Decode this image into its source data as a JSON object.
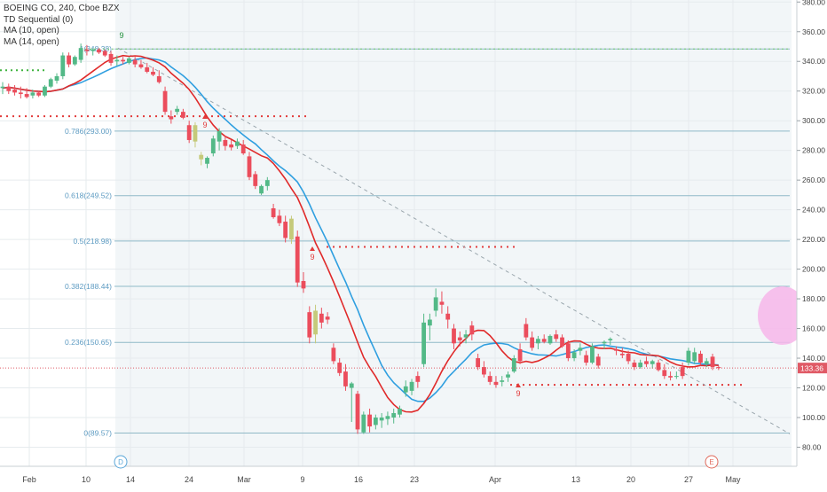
{
  "legend": {
    "symbol_line": "BOEING CO, 240, Cboe BZX",
    "indicator_1": "TD Sequential (0)",
    "indicator_2": "MA (10, open)",
    "indicator_3": "MA (14, open)"
  },
  "chart_data": {
    "type": "candlestick",
    "title": "BOEING CO, 240, Cboe BZX",
    "ylim": [
      75,
      385
    ],
    "y_ticks": [
      80,
      100,
      120,
      140,
      160,
      180,
      200,
      220,
      240,
      260,
      280,
      300,
      320,
      340,
      360,
      380
    ],
    "x_ticks": [
      "Feb",
      "10",
      "14",
      "24",
      "Mar",
      "9",
      "16",
      "23",
      "Apr",
      "13",
      "20",
      "27",
      "May"
    ],
    "last_price": "133.36",
    "fibonacci": {
      "levels": [
        {
          "ratio": "1",
          "price": "(348.38)",
          "value": 348.38
        },
        {
          "ratio": "0.786",
          "price": "(293.00)",
          "value": 293.0
        },
        {
          "ratio": "0.618",
          "price": "(249.52)",
          "value": 249.52
        },
        {
          "ratio": "0.5",
          "price": "(218.98)",
          "value": 218.98
        },
        {
          "ratio": "0.382",
          "price": "(188.44)",
          "value": 188.44
        },
        {
          "ratio": "0.236",
          "price": "(150.65)",
          "value": 150.65
        },
        {
          "ratio": "0",
          "price": "(89.57)",
          "value": 89.57
        }
      ]
    },
    "td_labels": [
      "9",
      "9",
      "9",
      "9"
    ],
    "event_markers": [
      "D",
      "E"
    ],
    "candles": [
      {
        "o": 322,
        "h": 326,
        "l": 318,
        "c": 323
      },
      {
        "o": 323,
        "h": 325,
        "l": 318,
        "c": 320
      },
      {
        "o": 321,
        "h": 324,
        "l": 317,
        "c": 319
      },
      {
        "o": 319,
        "h": 323,
        "l": 315,
        "c": 318
      },
      {
        "o": 318,
        "h": 322,
        "l": 315,
        "c": 316
      },
      {
        "o": 317,
        "h": 321,
        "l": 315,
        "c": 319
      },
      {
        "o": 319,
        "h": 320,
        "l": 316,
        "c": 317
      },
      {
        "o": 317,
        "h": 324,
        "l": 316,
        "c": 323
      },
      {
        "o": 323,
        "h": 329,
        "l": 322,
        "c": 328
      },
      {
        "o": 327,
        "h": 332,
        "l": 325,
        "c": 330
      },
      {
        "o": 330,
        "h": 346,
        "l": 328,
        "c": 344
      },
      {
        "o": 344,
        "h": 346,
        "l": 336,
        "c": 338
      },
      {
        "o": 338,
        "h": 344,
        "l": 337,
        "c": 343
      },
      {
        "o": 341,
        "h": 352,
        "l": 339,
        "c": 349
      },
      {
        "o": 348,
        "h": 351,
        "l": 344,
        "c": 347
      },
      {
        "o": 347,
        "h": 349,
        "l": 344,
        "c": 348
      },
      {
        "o": 348,
        "h": 349,
        "l": 345,
        "c": 346
      },
      {
        "o": 347,
        "h": 348,
        "l": 343,
        "c": 344
      },
      {
        "o": 345,
        "h": 347,
        "l": 337,
        "c": 339
      },
      {
        "o": 340,
        "h": 344,
        "l": 337,
        "c": 341
      },
      {
        "o": 341,
        "h": 343,
        "l": 338,
        "c": 340
      },
      {
        "o": 339,
        "h": 343,
        "l": 338,
        "c": 342
      },
      {
        "o": 341,
        "h": 343,
        "l": 336,
        "c": 338
      },
      {
        "o": 338,
        "h": 341,
        "l": 335,
        "c": 336
      },
      {
        "o": 336,
        "h": 339,
        "l": 332,
        "c": 333
      },
      {
        "o": 333,
        "h": 336,
        "l": 330,
        "c": 331
      },
      {
        "o": 330,
        "h": 334,
        "l": 325,
        "c": 326
      },
      {
        "o": 320,
        "h": 323,
        "l": 304,
        "c": 306
      },
      {
        "o": 303,
        "h": 307,
        "l": 298,
        "c": 301
      },
      {
        "o": 306,
        "h": 310,
        "l": 304,
        "c": 308
      },
      {
        "o": 306,
        "h": 308,
        "l": 301,
        "c": 302
      },
      {
        "o": 297,
        "h": 300,
        "l": 285,
        "c": 287
      },
      {
        "o": 286,
        "h": 299,
        "l": 282,
        "c": 297
      },
      {
        "o": 274,
        "h": 279,
        "l": 270,
        "c": 277
      },
      {
        "o": 271,
        "h": 276,
        "l": 268,
        "c": 275
      },
      {
        "o": 278,
        "h": 290,
        "l": 276,
        "c": 288
      },
      {
        "o": 286,
        "h": 295,
        "l": 280,
        "c": 293
      },
      {
        "o": 287,
        "h": 290,
        "l": 280,
        "c": 283
      },
      {
        "o": 284,
        "h": 287,
        "l": 280,
        "c": 282
      },
      {
        "o": 283,
        "h": 288,
        "l": 281,
        "c": 286
      },
      {
        "o": 284,
        "h": 287,
        "l": 277,
        "c": 278
      },
      {
        "o": 276,
        "h": 279,
        "l": 260,
        "c": 262
      },
      {
        "o": 264,
        "h": 266,
        "l": 254,
        "c": 256
      },
      {
        "o": 251,
        "h": 257,
        "l": 250,
        "c": 256
      },
      {
        "o": 256,
        "h": 262,
        "l": 253,
        "c": 260
      },
      {
        "o": 241,
        "h": 244,
        "l": 234,
        "c": 235
      },
      {
        "o": 236,
        "h": 240,
        "l": 229,
        "c": 231
      },
      {
        "o": 232,
        "h": 236,
        "l": 218,
        "c": 221
      },
      {
        "o": 220,
        "h": 236,
        "l": 217,
        "c": 234
      },
      {
        "o": 222,
        "h": 226,
        "l": 188,
        "c": 191
      },
      {
        "o": 192,
        "h": 198,
        "l": 184,
        "c": 187
      },
      {
        "o": 171,
        "h": 175,
        "l": 150,
        "c": 154
      },
      {
        "o": 156,
        "h": 176,
        "l": 150,
        "c": 172
      },
      {
        "o": 170,
        "h": 174,
        "l": 160,
        "c": 164
      },
      {
        "o": 168,
        "h": 171,
        "l": 163,
        "c": 166
      },
      {
        "o": 147,
        "h": 150,
        "l": 136,
        "c": 138
      },
      {
        "o": 137,
        "h": 140,
        "l": 128,
        "c": 130
      },
      {
        "o": 131,
        "h": 136,
        "l": 118,
        "c": 121
      },
      {
        "o": 120,
        "h": 124,
        "l": 97,
        "c": 123
      },
      {
        "o": 116,
        "h": 118,
        "l": 89,
        "c": 92
      },
      {
        "o": 90,
        "h": 104,
        "l": 89,
        "c": 102
      },
      {
        "o": 102,
        "h": 106,
        "l": 90,
        "c": 94
      },
      {
        "o": 95,
        "h": 102,
        "l": 92,
        "c": 100
      },
      {
        "o": 98,
        "h": 103,
        "l": 93,
        "c": 100
      },
      {
        "o": 99,
        "h": 104,
        "l": 95,
        "c": 101
      },
      {
        "o": 100,
        "h": 106,
        "l": 96,
        "c": 103
      },
      {
        "o": 102,
        "h": 108,
        "l": 100,
        "c": 106
      },
      {
        "o": 117,
        "h": 125,
        "l": 114,
        "c": 121
      },
      {
        "o": 118,
        "h": 126,
        "l": 115,
        "c": 124
      },
      {
        "o": 128,
        "h": 131,
        "l": 120,
        "c": 124
      },
      {
        "o": 136,
        "h": 170,
        "l": 134,
        "c": 164
      },
      {
        "o": 162,
        "h": 170,
        "l": 152,
        "c": 166
      },
      {
        "o": 172,
        "h": 187,
        "l": 168,
        "c": 181
      },
      {
        "o": 178,
        "h": 185,
        "l": 170,
        "c": 176
      },
      {
        "o": 170,
        "h": 175,
        "l": 160,
        "c": 166
      },
      {
        "o": 160,
        "h": 163,
        "l": 146,
        "c": 150
      },
      {
        "o": 154,
        "h": 158,
        "l": 148,
        "c": 152
      },
      {
        "o": 154,
        "h": 159,
        "l": 150,
        "c": 156
      },
      {
        "o": 162,
        "h": 165,
        "l": 152,
        "c": 156
      },
      {
        "o": 140,
        "h": 143,
        "l": 132,
        "c": 134
      },
      {
        "o": 134,
        "h": 138,
        "l": 127,
        "c": 129
      },
      {
        "o": 128,
        "h": 131,
        "l": 122,
        "c": 124
      },
      {
        "o": 124,
        "h": 128,
        "l": 120,
        "c": 122
      },
      {
        "o": 124,
        "h": 128,
        "l": 121,
        "c": 125
      },
      {
        "o": 127,
        "h": 131,
        "l": 124,
        "c": 129
      },
      {
        "o": 131,
        "h": 142,
        "l": 130,
        "c": 140
      },
      {
        "o": 146,
        "h": 150,
        "l": 136,
        "c": 138
      },
      {
        "o": 163,
        "h": 167,
        "l": 152,
        "c": 154
      },
      {
        "o": 154,
        "h": 158,
        "l": 145,
        "c": 147
      },
      {
        "o": 150,
        "h": 155,
        "l": 146,
        "c": 153
      },
      {
        "o": 153,
        "h": 156,
        "l": 150,
        "c": 151
      },
      {
        "o": 150,
        "h": 156,
        "l": 149,
        "c": 155
      },
      {
        "o": 156,
        "h": 159,
        "l": 151,
        "c": 153
      },
      {
        "o": 154,
        "h": 156,
        "l": 147,
        "c": 148
      },
      {
        "o": 150,
        "h": 152,
        "l": 138,
        "c": 140
      },
      {
        "o": 140,
        "h": 146,
        "l": 138,
        "c": 144
      },
      {
        "o": 145,
        "h": 150,
        "l": 142,
        "c": 147
      },
      {
        "o": 142,
        "h": 145,
        "l": 135,
        "c": 137
      },
      {
        "o": 137,
        "h": 150,
        "l": 136,
        "c": 148
      },
      {
        "o": 141,
        "h": 143,
        "l": 133,
        "c": 135
      },
      {
        "o": 150,
        "h": 152,
        "l": 146,
        "c": 151
      },
      {
        "o": 152,
        "h": 154,
        "l": 149,
        "c": 153
      },
      {
        "o": 146,
        "h": 148,
        "l": 142,
        "c": 145
      },
      {
        "o": 143,
        "h": 147,
        "l": 140,
        "c": 142
      },
      {
        "o": 143,
        "h": 145,
        "l": 136,
        "c": 138
      },
      {
        "o": 137,
        "h": 139,
        "l": 132,
        "c": 134
      },
      {
        "o": 134,
        "h": 139,
        "l": 133,
        "c": 137
      },
      {
        "o": 138,
        "h": 141,
        "l": 134,
        "c": 136
      },
      {
        "o": 136,
        "h": 139,
        "l": 133,
        "c": 138
      },
      {
        "o": 137,
        "h": 139,
        "l": 131,
        "c": 132
      },
      {
        "o": 132,
        "h": 136,
        "l": 126,
        "c": 128
      },
      {
        "o": 128,
        "h": 131,
        "l": 125,
        "c": 127
      },
      {
        "o": 128,
        "h": 131,
        "l": 126,
        "c": 128
      },
      {
        "o": 134,
        "h": 137,
        "l": 126,
        "c": 128
      },
      {
        "o": 137,
        "h": 147,
        "l": 135,
        "c": 145
      },
      {
        "o": 138,
        "h": 147,
        "l": 136,
        "c": 144
      },
      {
        "o": 143,
        "h": 145,
        "l": 135,
        "c": 137
      },
      {
        "o": 136,
        "h": 140,
        "l": 134,
        "c": 138
      },
      {
        "o": 141,
        "h": 143,
        "l": 132,
        "c": 134
      },
      {
        "o": 134,
        "h": 135,
        "l": 132,
        "c": 133.36
      }
    ]
  },
  "colors": {
    "up": "#53b987",
    "down": "#eb4d5c",
    "td_highlight": "#c5ca7a",
    "ma_fast": "#e02a2a",
    "ma_slow": "#2f9fe0",
    "fib_line": "#8fb9c7",
    "fib_label": "#5d9bc2",
    "highlight_band": "#f2f6f8",
    "price_badge": "#e05a66",
    "forecast_ellipse": "#f7b6ea"
  }
}
